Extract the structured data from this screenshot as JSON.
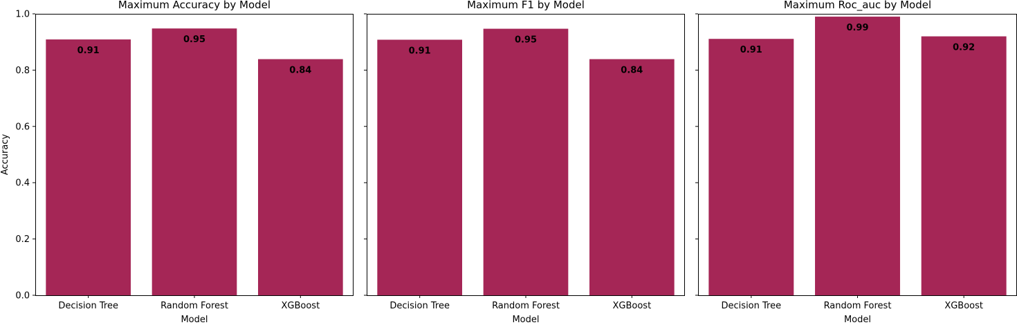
{
  "chart_data": [
    {
      "type": "bar",
      "title": "Maximum Accuracy by Model",
      "xlabel": "Model",
      "ylabel": "Accuracy",
      "categories": [
        "Decision Tree",
        "Random Forest",
        "XGBoost"
      ],
      "values": [
        0.909,
        0.948,
        0.839
      ],
      "labels": [
        "0.91",
        "0.95",
        "0.84"
      ],
      "ylim": [
        0,
        1.0
      ],
      "yticks": [
        "0.0",
        "0.2",
        "0.4",
        "0.6",
        "0.8",
        "1.0"
      ],
      "color": "#a52656",
      "grid": false
    },
    {
      "type": "bar",
      "title": "Maximum F1 by Model",
      "xlabel": "Model",
      "ylabel": "",
      "categories": [
        "Decision Tree",
        "Random Forest",
        "XGBoost"
      ],
      "values": [
        0.908,
        0.947,
        0.839
      ],
      "labels": [
        "0.91",
        "0.95",
        "0.84"
      ],
      "ylim": [
        0,
        1.0
      ],
      "color": "#a52656",
      "grid": false
    },
    {
      "type": "bar",
      "title": "Maximum Roc_auc by Model",
      "xlabel": "Model",
      "ylabel": "",
      "categories": [
        "Decision Tree",
        "Random Forest",
        "XGBoost"
      ],
      "values": [
        0.911,
        0.99,
        0.92
      ],
      "labels": [
        "0.91",
        "0.99",
        "0.92"
      ],
      "ylim": [
        0,
        1.0
      ],
      "color": "#a52656",
      "grid": false
    }
  ]
}
